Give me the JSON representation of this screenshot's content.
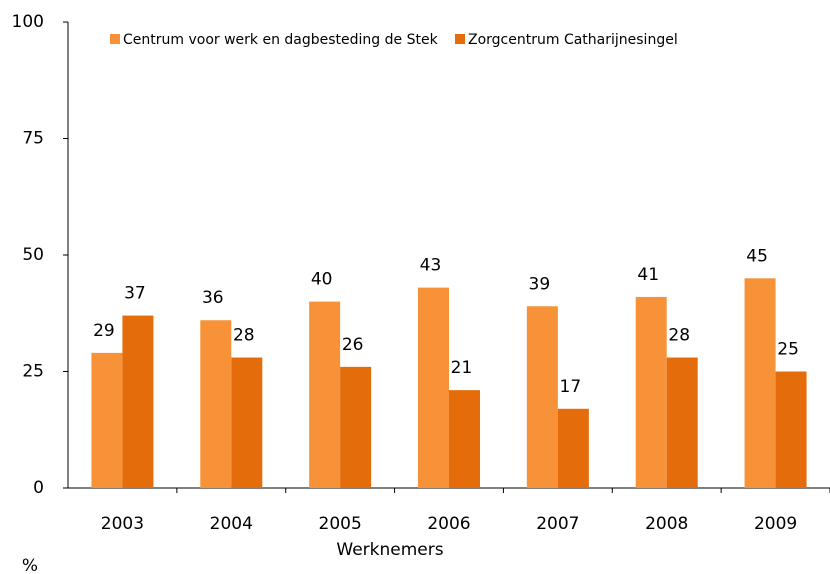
{
  "chart_data": {
    "type": "bar",
    "categories": [
      "2003",
      "2004",
      "2005",
      "2006",
      "2007",
      "2008",
      "2009"
    ],
    "series": [
      {
        "name": "Centrum voor werk en dagbesteding de Stek",
        "color": "#f79239",
        "values": [
          29,
          36,
          40,
          43,
          39,
          41,
          45
        ]
      },
      {
        "name": "Zorgcentrum Catharijnesingel",
        "color": "#e46c0a",
        "values": [
          37,
          28,
          26,
          21,
          17,
          28,
          25
        ]
      }
    ],
    "xlabel": "Werknemers",
    "ylabel": "%",
    "ylim": [
      0,
      100
    ],
    "yticks": [
      0,
      25,
      50,
      75,
      100
    ],
    "grid": false,
    "legend": "top"
  }
}
